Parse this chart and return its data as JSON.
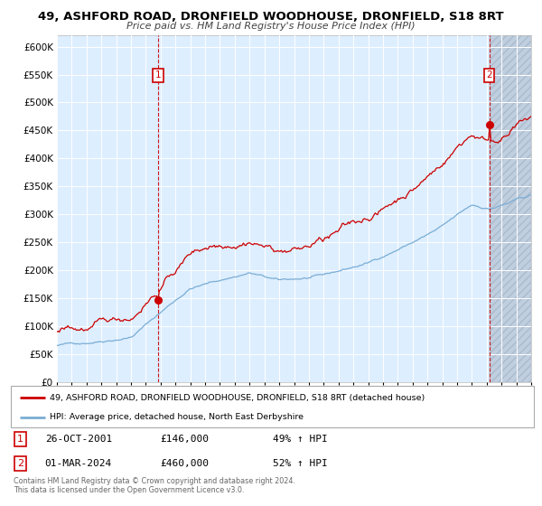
{
  "title1": "49, ASHFORD ROAD, DRONFIELD WOODHOUSE, DRONFIELD, S18 8RT",
  "title2": "Price paid vs. HM Land Registry's House Price Index (HPI)",
  "legend_line1": "49, ASHFORD ROAD, DRONFIELD WOODHOUSE, DRONFIELD, S18 8RT (detached house)",
  "legend_line2": "HPI: Average price, detached house, North East Derbyshire",
  "point1_date": "26-OCT-2001",
  "point1_price": "£146,000",
  "point1_hpi": "49% ↑ HPI",
  "point2_date": "01-MAR-2024",
  "point2_price": "£460,000",
  "point2_hpi": "52% ↑ HPI",
  "footnote1": "Contains HM Land Registry data © Crown copyright and database right 2024.",
  "footnote2": "This data is licensed under the Open Government Licence v3.0.",
  "red_color": "#cc0000",
  "blue_color": "#7aadd4",
  "bg_color": "#ddeeff",
  "hatch_color": "#c0cfe0",
  "grid_color": "#ffffff",
  "ylim_min": 0,
  "ylim_max": 620000,
  "start_year": 1995,
  "end_year": 2027,
  "sale1_year": 2001.82,
  "sale1_value": 146000,
  "sale2_year": 2024.17,
  "sale2_value": 460000
}
